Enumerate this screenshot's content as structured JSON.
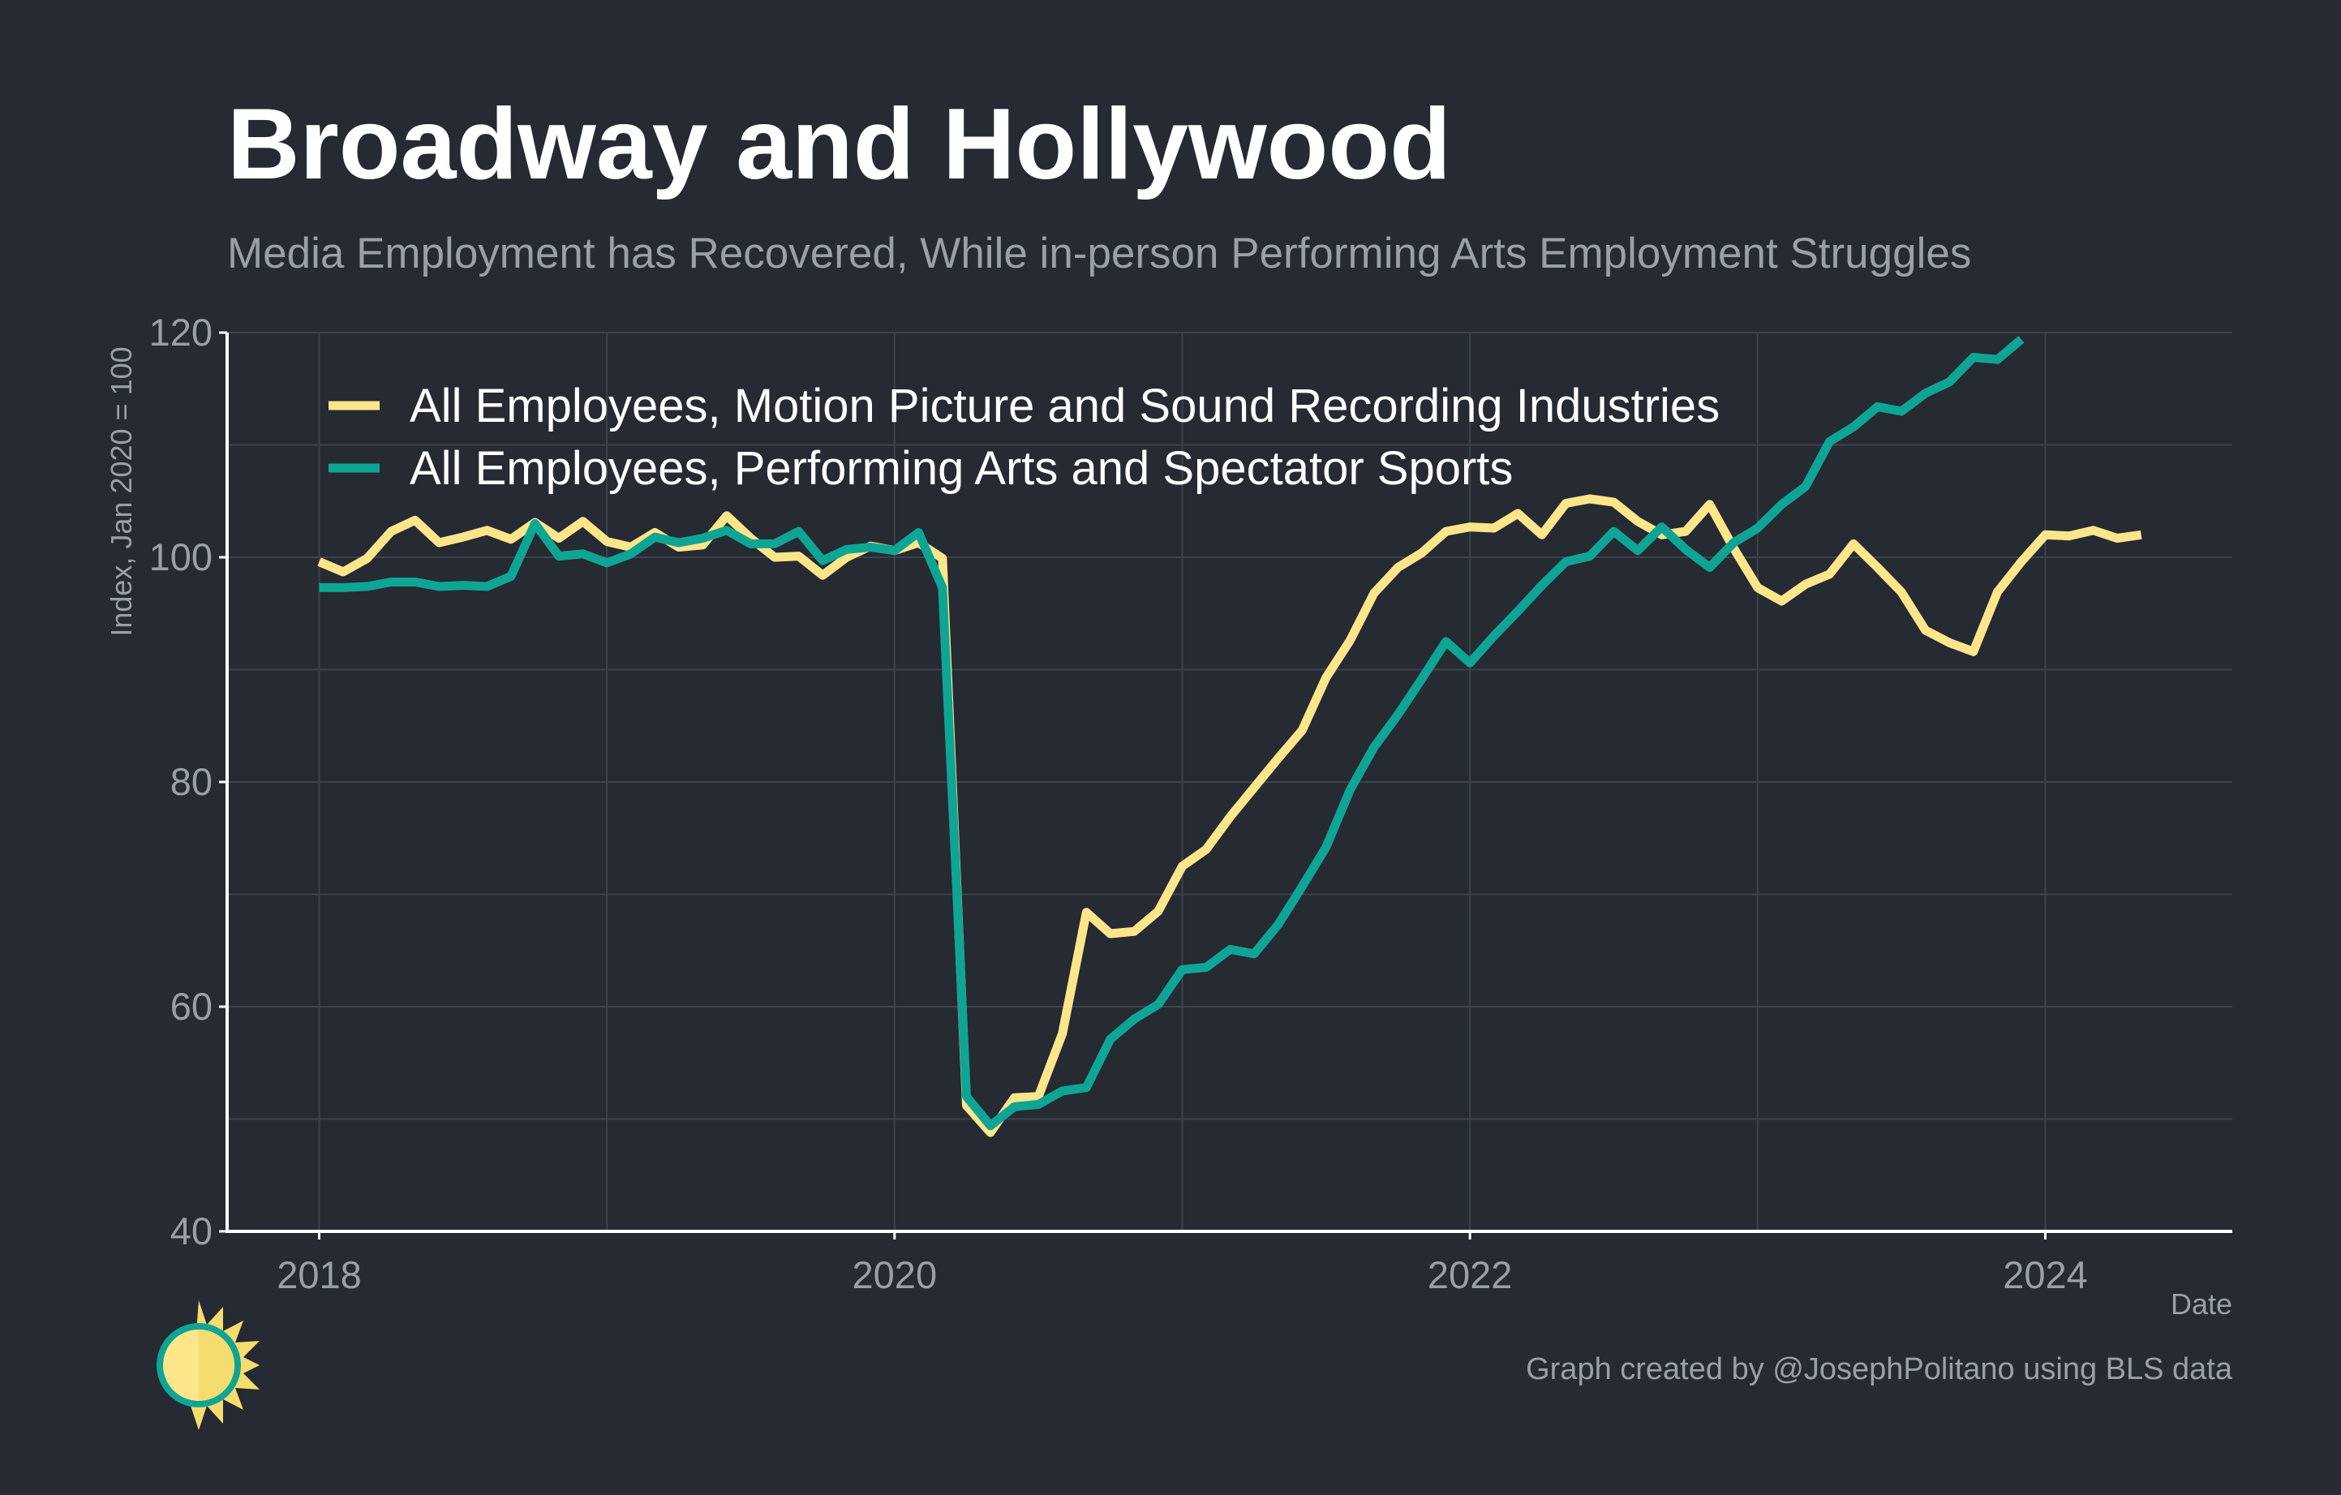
{
  "title": "Broadway and Hollywood",
  "subtitle": "Media Employment has Recovered, While in-person Performing Arts Employment Struggles",
  "caption": "Graph created by @JosephPolitano using BLS data",
  "colors": {
    "background": "#252a33",
    "grid": "#3d434d",
    "axis": "#ffffff",
    "text": "#9aa0a8"
  },
  "chart_data": {
    "type": "line",
    "title": "Broadway and Hollywood",
    "subtitle": "Media Employment has Recovered, While in-person Performing Arts Employment Struggles",
    "xlabel": "Date",
    "ylabel": "Index, Jan 2020 = 100",
    "xlim": [
      2017.68,
      2024.65
    ],
    "ylim": [
      40,
      120
    ],
    "yticks": [
      40,
      60,
      80,
      100,
      120
    ],
    "xticks": [
      2018,
      2020,
      2022,
      2024
    ],
    "ytick_labels": [
      "40",
      "60",
      "80",
      "100",
      "120"
    ],
    "xtick_labels": [
      "2018",
      "2020",
      "2022",
      "2024"
    ],
    "grid": true,
    "legend_position": "top-left",
    "start": "2018-01",
    "series": [
      {
        "name": "All Employees, Motion Picture and Sound Recording Industries",
        "color": "#fde68a",
        "values": [
          99.6,
          98.7,
          99.9,
          102.3,
          103.3,
          101.3,
          101.8,
          102.4,
          101.6,
          103.1,
          101.7,
          103.2,
          101.4,
          100.9,
          102.2,
          100.9,
          101.1,
          103.7,
          101.7,
          100.0,
          100.1,
          98.4,
          100.0,
          101.0,
          100.6,
          101.3,
          99.9,
          51.2,
          48.8,
          51.9,
          52.0,
          57.6,
          68.4,
          66.5,
          66.7,
          68.5,
          72.5,
          74.0,
          76.9,
          79.5,
          82.1,
          84.6,
          89.3,
          92.6,
          96.8,
          99.1,
          100.4,
          102.3,
          102.7,
          102.6,
          103.9,
          102.0,
          104.8,
          105.2,
          104.9,
          103.2,
          102.0,
          102.3,
          104.7,
          100.8,
          97.3,
          96.1,
          97.6,
          98.5,
          101.2,
          99.1,
          96.9,
          93.5,
          92.4,
          91.6,
          96.9,
          99.6,
          102.0,
          101.9,
          102.4,
          101.7,
          102.0
        ]
      },
      {
        "name": "All Employees, Performing Arts and Spectator Sports",
        "color": "#0ea594",
        "values": [
          97.3,
          97.3,
          97.4,
          97.8,
          97.8,
          97.4,
          97.5,
          97.4,
          98.3,
          103.0,
          100.1,
          100.3,
          99.5,
          100.3,
          101.8,
          101.3,
          101.7,
          102.4,
          101.2,
          101.2,
          102.3,
          99.7,
          100.7,
          100.9,
          100.6,
          102.2,
          97.3,
          52.0,
          49.4,
          51.1,
          51.3,
          52.5,
          52.8,
          57.1,
          58.9,
          60.2,
          63.3,
          63.5,
          65.1,
          64.7,
          67.3,
          70.7,
          74.2,
          79.3,
          83.1,
          86.0,
          89.2,
          92.5,
          90.6,
          93.0,
          95.2,
          97.5,
          99.6,
          100.1,
          102.3,
          100.6,
          102.7,
          100.7,
          99.1,
          101.3,
          102.6,
          104.7,
          106.3,
          110.3,
          111.6,
          113.4,
          113.0,
          114.6,
          115.6,
          117.8,
          117.6,
          119.4
        ]
      }
    ]
  }
}
